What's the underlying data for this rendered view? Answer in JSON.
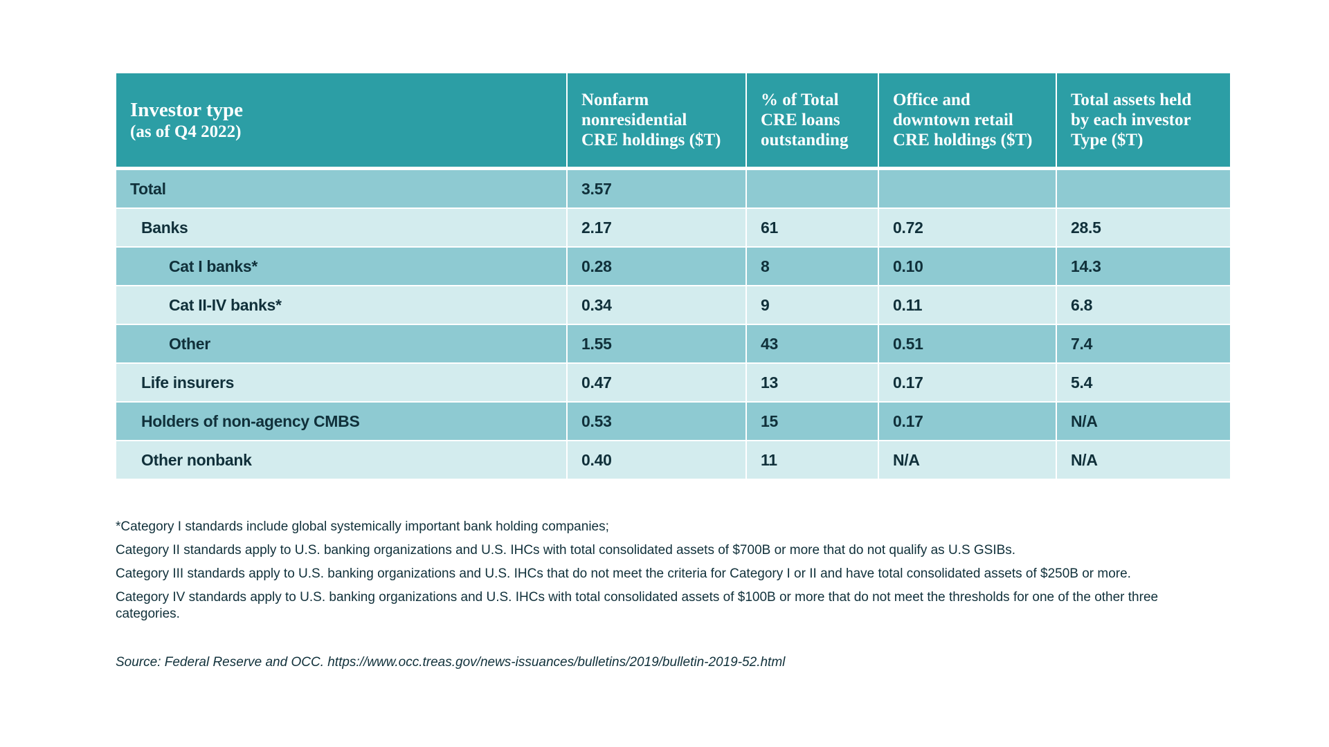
{
  "table": {
    "header": [
      {
        "lines": [
          "Investor type",
          "(as of Q4 2022)"
        ]
      },
      {
        "lines": [
          "Nonfarm",
          "nonresidential",
          "CRE holdings ($T)"
        ]
      },
      {
        "lines": [
          "% of Total",
          "CRE loans",
          "outstanding"
        ]
      },
      {
        "lines": [
          "Office and",
          "downtown retail",
          "CRE holdings ($T)"
        ]
      },
      {
        "lines": [
          "Total assets held",
          "by each investor",
          "Type ($T)"
        ]
      }
    ],
    "rows": [
      {
        "level": 0,
        "cells": [
          "Total",
          "3.57",
          null,
          null,
          null
        ]
      },
      {
        "level": 1,
        "cells": [
          "Banks",
          "2.17",
          "61",
          "0.72",
          "28.5"
        ]
      },
      {
        "level": 2,
        "cells": [
          "Cat I banks*",
          "0.28",
          "8",
          "0.10",
          "14.3"
        ]
      },
      {
        "level": 2,
        "cells": [
          "Cat II-IV banks*",
          "0.34",
          "9",
          "0.11",
          "6.8"
        ]
      },
      {
        "level": 2,
        "cells": [
          "Other",
          "1.55",
          "43",
          "0.51",
          "7.4"
        ]
      },
      {
        "level": 1,
        "cells": [
          "Life insurers",
          "0.47",
          "13",
          "0.17",
          "5.4"
        ]
      },
      {
        "level": 1,
        "cells": [
          "Holders of non-agency CMBS",
          "0.53",
          "15",
          "0.17",
          "N/A"
        ]
      },
      {
        "level": 1,
        "cells": [
          "Other nonbank",
          "0.40",
          "11",
          "N/A",
          "N/A"
        ]
      }
    ]
  },
  "footnotes": [
    "*Category I standards include global systemically important bank holding companies;",
    "Category II standards apply to U.S. banking organizations and U.S. IHCs with total consolidated assets of $700B or more that do not qualify as U.S GSIBs.",
    "Category III standards apply to U.S. banking organizations and U.S. IHCs that do not meet the criteria for Category I or II and have total consolidated assets of $250B or more.",
    "Category IV standards apply to U.S. banking organizations and U.S. IHCs with total consolidated assets of $100B or more that do not meet the thresholds for one of the other three categories."
  ],
  "source": "Source: Federal Reserve and OCC. https://www.occ.treas.gov/news-issuances/bulletins/2019/bulletin-2019-52.html"
}
